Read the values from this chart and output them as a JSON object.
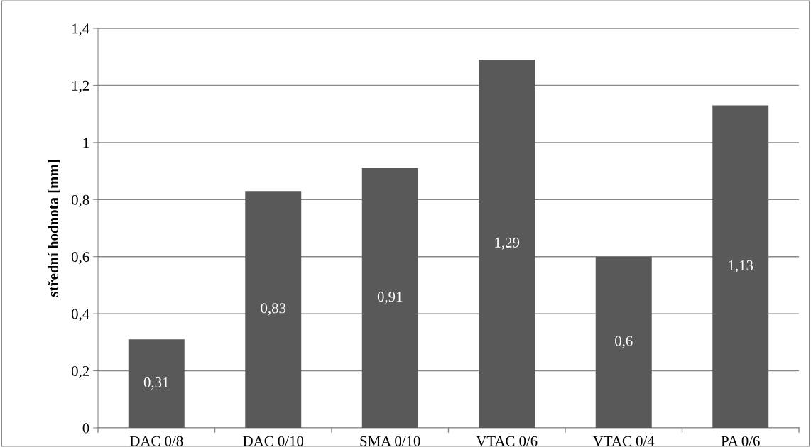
{
  "chart_data": {
    "type": "bar",
    "ylabel": "střední hodnota [mm]",
    "categories": [
      "DAC 0/8",
      "DAC 0/10",
      "SMA 0/10",
      "VTAC 0/6",
      "VTAC 0/4",
      "PA 0/6"
    ],
    "values": [
      0.31,
      0.83,
      0.91,
      1.29,
      0.6,
      1.13
    ],
    "value_labels": [
      "0,31",
      "0,83",
      "0,91",
      "1,29",
      "0,6",
      "1,13"
    ],
    "color": "#595959",
    "ylim": [
      0,
      1.4
    ],
    "yticks": [
      0,
      {
        "value": 0.2,
        "label": "0,2"
      },
      {
        "value": 0.4,
        "label": "0,4"
      },
      {
        "value": 0.6,
        "label": "0,6"
      },
      {
        "value": 0.8,
        "label": "0,8"
      },
      1,
      {
        "value": 1.2,
        "label": "1,2"
      },
      {
        "value": 1.4,
        "label": "1,4"
      }
    ],
    "grid": "y",
    "legend": false
  }
}
